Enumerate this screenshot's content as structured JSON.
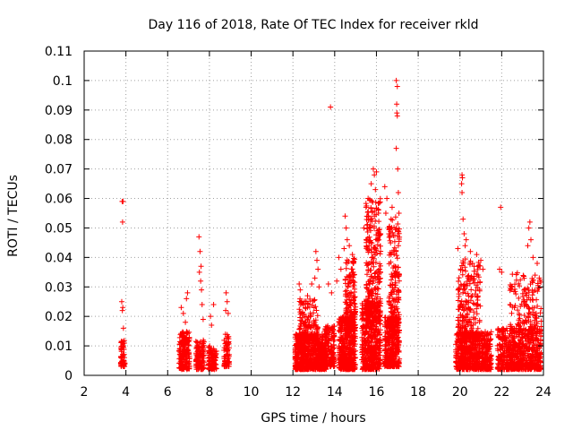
{
  "chart_data": {
    "type": "scatter",
    "title": "Day 116 of 2018, Rate Of TEC Index for receiver rkld",
    "xlabel": "GPS time / hours",
    "ylabel": "ROTI / TECUs",
    "xlim": [
      2,
      24
    ],
    "ylim": [
      0,
      0.11
    ],
    "xticks": [
      2,
      4,
      6,
      8,
      10,
      12,
      14,
      16,
      18,
      20,
      22,
      24
    ],
    "xtick_labels": [
      "2",
      "4",
      "6",
      "8",
      "10",
      "12",
      "14",
      "16",
      "18",
      "20",
      "22",
      "24"
    ],
    "yticks": [
      0,
      0.01,
      0.02,
      0.03,
      0.04,
      0.05,
      0.06,
      0.07,
      0.08,
      0.09,
      0.1,
      0.11
    ],
    "ytick_labels": [
      "0",
      "0.01",
      "0.02",
      "0.03",
      "0.04",
      "0.05",
      "0.06",
      "0.07",
      "0.08",
      "0.09",
      "0.1",
      "0.11"
    ],
    "grid": true,
    "marker": "+",
    "marker_color": "#ff0000",
    "series": [
      {
        "name": "ROTI",
        "clusters": [
          {
            "x_range": [
              3.75,
              3.95
            ],
            "y_range": [
              0.003,
              0.012
            ],
            "n": 60
          },
          {
            "x_range": [
              6.55,
              7.05
            ],
            "y_range": [
              0.002,
              0.015
            ],
            "n": 180
          },
          {
            "x_range": [
              7.35,
              7.75
            ],
            "y_range": [
              0.002,
              0.012
            ],
            "n": 120
          },
          {
            "x_range": [
              7.95,
              8.35
            ],
            "y_range": [
              0.002,
              0.01
            ],
            "n": 90
          },
          {
            "x_range": [
              8.7,
              8.95
            ],
            "y_range": [
              0.003,
              0.014
            ],
            "n": 80
          },
          {
            "x_range": [
              12.1,
              13.6
            ],
            "y_range": [
              0.002,
              0.014
            ],
            "n": 700
          },
          {
            "x_range": [
              12.3,
              13.2
            ],
            "y_range": [
              0.012,
              0.026
            ],
            "n": 150
          },
          {
            "x_range": [
              13.5,
              14.0
            ],
            "y_range": [
              0.003,
              0.017
            ],
            "n": 150
          },
          {
            "x_range": [
              14.2,
              15.0
            ],
            "y_range": [
              0.002,
              0.02
            ],
            "n": 400
          },
          {
            "x_range": [
              14.5,
              15.0
            ],
            "y_range": [
              0.015,
              0.04
            ],
            "n": 200
          },
          {
            "x_range": [
              15.3,
              16.2
            ],
            "y_range": [
              0.002,
              0.025
            ],
            "n": 450
          },
          {
            "x_range": [
              15.5,
              16.2
            ],
            "y_range": [
              0.02,
              0.06
            ],
            "n": 250
          },
          {
            "x_range": [
              16.4,
              17.1
            ],
            "y_range": [
              0.003,
              0.02
            ],
            "n": 350
          },
          {
            "x_range": [
              16.6,
              17.1
            ],
            "y_range": [
              0.018,
              0.055
            ],
            "n": 160
          },
          {
            "x_range": [
              19.8,
              21.5
            ],
            "y_range": [
              0.002,
              0.015
            ],
            "n": 650
          },
          {
            "x_range": [
              19.9,
              21.0
            ],
            "y_range": [
              0.012,
              0.04
            ],
            "n": 220
          },
          {
            "x_range": [
              21.8,
              23.9
            ],
            "y_range": [
              0.002,
              0.016
            ],
            "n": 650
          },
          {
            "x_range": [
              22.4,
              23.9
            ],
            "y_range": [
              0.015,
              0.035
            ],
            "n": 150
          }
        ],
        "points": [
          {
            "x": 3.82,
            "y": 0.059
          },
          {
            "x": 3.86,
            "y": 0.059
          },
          {
            "x": 3.84,
            "y": 0.052
          },
          {
            "x": 3.8,
            "y": 0.025
          },
          {
            "x": 3.85,
            "y": 0.023
          },
          {
            "x": 3.83,
            "y": 0.022
          },
          {
            "x": 3.88,
            "y": 0.016
          },
          {
            "x": 6.65,
            "y": 0.023
          },
          {
            "x": 6.75,
            "y": 0.021
          },
          {
            "x": 6.9,
            "y": 0.026
          },
          {
            "x": 6.95,
            "y": 0.028
          },
          {
            "x": 6.85,
            "y": 0.018
          },
          {
            "x": 7.5,
            "y": 0.047
          },
          {
            "x": 7.55,
            "y": 0.042
          },
          {
            "x": 7.6,
            "y": 0.037
          },
          {
            "x": 7.52,
            "y": 0.035
          },
          {
            "x": 7.58,
            "y": 0.032
          },
          {
            "x": 7.62,
            "y": 0.029
          },
          {
            "x": 7.65,
            "y": 0.024
          },
          {
            "x": 7.7,
            "y": 0.019
          },
          {
            "x": 8.2,
            "y": 0.024
          },
          {
            "x": 8.05,
            "y": 0.02
          },
          {
            "x": 8.1,
            "y": 0.017
          },
          {
            "x": 8.8,
            "y": 0.028
          },
          {
            "x": 8.85,
            "y": 0.025
          },
          {
            "x": 8.78,
            "y": 0.022
          },
          {
            "x": 8.9,
            "y": 0.021
          },
          {
            "x": 12.3,
            "y": 0.031
          },
          {
            "x": 12.35,
            "y": 0.029
          },
          {
            "x": 12.5,
            "y": 0.024
          },
          {
            "x": 12.7,
            "y": 0.027
          },
          {
            "x": 12.9,
            "y": 0.031
          },
          {
            "x": 13.1,
            "y": 0.042
          },
          {
            "x": 13.15,
            "y": 0.039
          },
          {
            "x": 13.2,
            "y": 0.036
          },
          {
            "x": 13.05,
            "y": 0.033
          },
          {
            "x": 13.25,
            "y": 0.03
          },
          {
            "x": 13.8,
            "y": 0.091
          },
          {
            "x": 13.7,
            "y": 0.031
          },
          {
            "x": 13.85,
            "y": 0.028
          },
          {
            "x": 14.2,
            "y": 0.04
          },
          {
            "x": 14.3,
            "y": 0.036
          },
          {
            "x": 14.1,
            "y": 0.032
          },
          {
            "x": 14.5,
            "y": 0.054
          },
          {
            "x": 14.55,
            "y": 0.05
          },
          {
            "x": 14.6,
            "y": 0.046
          },
          {
            "x": 14.45,
            "y": 0.043
          },
          {
            "x": 14.7,
            "y": 0.044
          },
          {
            "x": 14.85,
            "y": 0.041
          },
          {
            "x": 14.9,
            "y": 0.038
          },
          {
            "x": 15.5,
            "y": 0.057
          },
          {
            "x": 15.6,
            "y": 0.06
          },
          {
            "x": 15.75,
            "y": 0.065
          },
          {
            "x": 15.85,
            "y": 0.07
          },
          {
            "x": 15.9,
            "y": 0.068
          },
          {
            "x": 16.0,
            "y": 0.069
          },
          {
            "x": 15.95,
            "y": 0.063
          },
          {
            "x": 16.1,
            "y": 0.055
          },
          {
            "x": 16.2,
            "y": 0.048
          },
          {
            "x": 15.4,
            "y": 0.05
          },
          {
            "x": 16.4,
            "y": 0.064
          },
          {
            "x": 16.5,
            "y": 0.06
          },
          {
            "x": 16.45,
            "y": 0.055
          },
          {
            "x": 16.7,
            "y": 0.053
          },
          {
            "x": 16.75,
            "y": 0.057
          },
          {
            "x": 16.6,
            "y": 0.048
          },
          {
            "x": 16.95,
            "y": 0.1
          },
          {
            "x": 17.0,
            "y": 0.098
          },
          {
            "x": 16.97,
            "y": 0.092
          },
          {
            "x": 16.98,
            "y": 0.089
          },
          {
            "x": 17.0,
            "y": 0.088
          },
          {
            "x": 16.95,
            "y": 0.077
          },
          {
            "x": 17.02,
            "y": 0.07
          },
          {
            "x": 17.05,
            "y": 0.062
          },
          {
            "x": 17.08,
            "y": 0.055
          },
          {
            "x": 17.05,
            "y": 0.044
          },
          {
            "x": 20.1,
            "y": 0.068
          },
          {
            "x": 20.12,
            "y": 0.067
          },
          {
            "x": 20.08,
            "y": 0.065
          },
          {
            "x": 20.1,
            "y": 0.062
          },
          {
            "x": 20.15,
            "y": 0.053
          },
          {
            "x": 20.2,
            "y": 0.048
          },
          {
            "x": 20.3,
            "y": 0.046
          },
          {
            "x": 20.25,
            "y": 0.044
          },
          {
            "x": 19.9,
            "y": 0.043
          },
          {
            "x": 20.5,
            "y": 0.042
          },
          {
            "x": 20.8,
            "y": 0.041
          },
          {
            "x": 21.0,
            "y": 0.039
          },
          {
            "x": 21.1,
            "y": 0.036
          },
          {
            "x": 20.6,
            "y": 0.038
          },
          {
            "x": 21.95,
            "y": 0.057
          },
          {
            "x": 21.9,
            "y": 0.036
          },
          {
            "x": 22.0,
            "y": 0.035
          },
          {
            "x": 23.35,
            "y": 0.052
          },
          {
            "x": 23.3,
            "y": 0.05
          },
          {
            "x": 23.4,
            "y": 0.046
          },
          {
            "x": 23.25,
            "y": 0.044
          },
          {
            "x": 23.5,
            "y": 0.04
          },
          {
            "x": 23.7,
            "y": 0.038
          },
          {
            "x": 23.6,
            "y": 0.034
          },
          {
            "x": 23.8,
            "y": 0.033
          },
          {
            "x": 22.5,
            "y": 0.03
          },
          {
            "x": 23.1,
            "y": 0.029
          }
        ]
      }
    ]
  }
}
